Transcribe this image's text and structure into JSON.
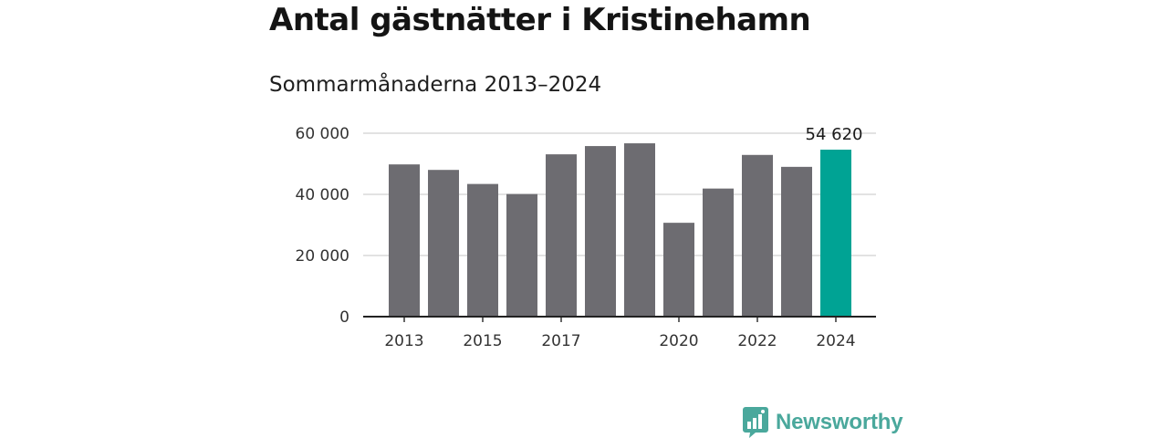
{
  "header": {
    "title": "Antal gästnätter i Kristinehamn",
    "subtitle": "Sommarmånaderna 2013–2024"
  },
  "chart_data": {
    "type": "bar",
    "categories": [
      "2013",
      "2014",
      "2015",
      "2016",
      "2017",
      "2018",
      "2019",
      "2020",
      "2021",
      "2022",
      "2023",
      "2024"
    ],
    "x_tick_labels": [
      "2013",
      "2015",
      "2017",
      "2020",
      "2022",
      "2024"
    ],
    "values": [
      49800,
      48000,
      43400,
      40100,
      53100,
      55800,
      56700,
      30700,
      41900,
      52900,
      49000,
      54620
    ],
    "y_ticks": [
      0,
      20000,
      40000,
      60000
    ],
    "y_tick_labels": [
      "0",
      "20 000",
      "40 000",
      "60 000"
    ],
    "ylim": [
      0,
      60000
    ],
    "grid": true,
    "bar_color": "#6d6c71",
    "highlight_color": "#00a394",
    "highlight_category": "2024",
    "annotation": {
      "category": "2024",
      "label": "54 620"
    }
  },
  "branding": {
    "logo_icon": "newsworthy-chart-bubble-icon",
    "name": "Newsworthy",
    "color": "#4aa89c"
  }
}
